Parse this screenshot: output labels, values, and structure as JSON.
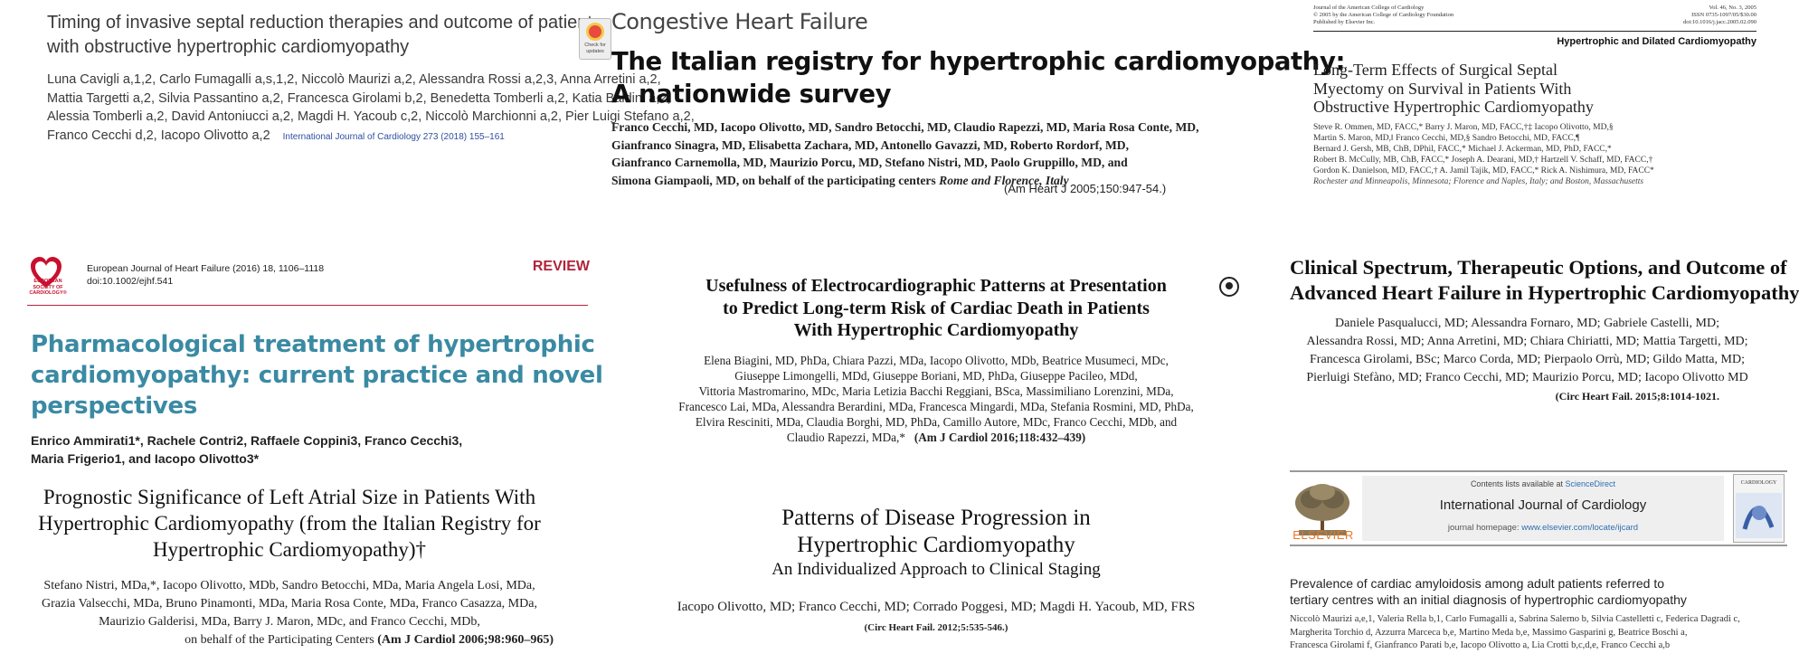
{
  "p1": {
    "title_lines": [
      "Timing of invasive septal reduction therapies and outcome of patients",
      "with obstructive hypertrophic cardiomyopathy"
    ],
    "author_lines": [
      "Luna Cavigli a,1,2, Carlo Fumagalli a,s,1,2, Niccolò Maurizi a,2, Alessandra Rossi a,2,3, Anna Arretini a,2,",
      "Mattia Targetti a,2, Silvia Passantino a,2, Francesca Girolami b,2, Benedetta Tomberli a,2, Katia Baldini a,2,",
      "Alessia Tomberli a,2, David Antoniucci a,2, Magdi H. Yacoub c,2, Niccolò Marchionni a,2, Pier Luigi Stefano a,2,",
      "Franco Cecchi d,2, Iacopo Olivotto a,2"
    ],
    "journal": "International Journal of Cardiology 273 (2018) 155–161",
    "badge": "Check for updates"
  },
  "p2": {
    "section": "Congestive Heart Failure",
    "title_lines": [
      "The Italian registry for hypertrophic cardiomyopathy:",
      "A nationwide survey"
    ],
    "author_lines": [
      "Franco Cecchi, MD, Iacopo Olivotto, MD, Sandro Betocchi, MD, Claudio Rapezzi, MD, Maria Rosa Conte, MD,",
      "Gianfranco Sinagra, MD, Elisabetta Zachara, MD, Antonello Gavazzi, MD, Roberto Rordorf, MD,",
      "Gianfranco Carnemolla, MD, Maurizio Porcu, MD, Stefano Nistri, MD, Paolo Gruppillo, MD, and",
      "Simona Giampaoli, MD, on behalf of the participating centers"
    ],
    "location": "Rome and Florence, Italy",
    "citation": "(Am Heart J 2005;150:947-54.)"
  },
  "p3": {
    "header_left": [
      "Journal of the American College of Cardiology",
      "© 2005 by the American College of Cardiology Foundation",
      "Published by Elsevier Inc."
    ],
    "header_right": [
      "Vol. 46, No. 3, 2005",
      "ISSN 0735-1097/05/$30.00",
      "doi:10.1016/j.jacc.2005.02.090"
    ],
    "section": "Hypertrophic and Dilated Cardiomyopathy",
    "title_lines": [
      "Long-Term Effects of Surgical Septal",
      "Myectomy on Survival in Patients With",
      "Obstructive Hypertrophic Cardiomyopathy"
    ],
    "author_lines": [
      "Steve R. Ommen, MD, FACC,* Barry J. Maron, MD, FACC,†‡ Iacopo Olivotto, MD,§",
      "Martin S. Maron, MD,‖ Franco Cecchi, MD,§ Sandro Betocchi, MD, FACC,¶",
      "Bernard J. Gersh, MB, ChB, DPhil, FACC,* Michael J. Ackerman, MD, PhD, FACC,*",
      "Robert B. McCully, MB, ChB, FACC,* Joseph A. Dearani, MD,† Hartzell V. Schaff, MD, FACC,†",
      "Gordon K. Danielson, MD, FACC,† A. Jamil Tajik, MD, FACC,* Rick A. Nishimura, MD, FACC*"
    ],
    "location": "Rochester and Minneapolis, Minnesota; Florence and Naples, Italy; and Boston, Massachusetts"
  },
  "p4": {
    "logo_text": [
      "EUROPEAN",
      "SOCIETY OF",
      "CARDIOLOGY®"
    ],
    "journal_lines": [
      "European Journal of Heart Failure (2016) 18, 1106–1118",
      "doi:10.1002/ejhf.541"
    ],
    "label": "REVIEW",
    "title_lines": [
      "Pharmacological treatment of hypertrophic",
      "cardiomyopathy: current practice and novel",
      "perspectives"
    ],
    "author_lines": [
      "Enrico Ammirati1*, Rachele Contri2, Raffaele Coppini3, Franco Cecchi3,",
      "Maria Frigerio1, and Iacopo Olivotto3*"
    ]
  },
  "p5": {
    "title_lines": [
      "Prognostic Significance of Left Atrial Size in Patients With",
      "Hypertrophic Cardiomyopathy (from the Italian Registry for",
      "Hypertrophic Cardiomyopathy)†"
    ],
    "author_lines": [
      "Stefano Nistri, MDa,*, Iacopo Olivotto, MDb, Sandro Betocchi, MDa, Maria Angela Losi, MDa,",
      "Grazia Valsecchi, MDa, Bruno Pinamonti, MDa, Maria Rosa Conte, MDa, Franco Casazza, MDa,",
      "Maurizio Galderisi, MDa, Barry J. Maron, MDc, and Franco Cecchi, MDb,"
    ],
    "last_line": "on behalf of the Participating Centers",
    "citation": "(Am J Cardiol 2006;98:960–965)"
  },
  "p6": {
    "title_lines": [
      "Usefulness of Electrocardiographic Patterns at Presentation",
      "to Predict Long-term Risk of Cardiac Death in Patients",
      "With Hypertrophic Cardiomyopathy"
    ],
    "author_lines": [
      "Elena Biagini, MD, PhDa, Chiara Pazzi, MDa, Iacopo Olivotto, MDb, Beatrice Musumeci, MDc,",
      "Giuseppe Limongelli, MDd, Giuseppe Boriani, MD, PhDa, Giuseppe Pacileo, MDd,",
      "Vittoria Mastromarino, MDc, Maria Letizia Bacchi Reggiani, BSca, Massimiliano Lorenzini, MDa,",
      "Francesco Lai, MDa, Alessandra Berardini, MDa, Francesca Mingardi, MDa, Stefania Rosmini, MD, PhDa,",
      "Elvira Resciniti, MDa, Claudia Borghi, MD, PhDa, Camillo Autore, MDc, Franco Cecchi, MDb, and"
    ],
    "last_line": "Claudio Rapezzi, MDa,*",
    "citation": "(Am J Cardiol 2016;118:432–439)"
  },
  "p7": {
    "title_lines": [
      "Patterns of Disease Progression in",
      "Hypertrophic Cardiomyopathy"
    ],
    "subtitle": "An Individualized Approach to Clinical Staging",
    "authors": "Iacopo Olivotto, MD; Franco Cecchi, MD; Corrado Poggesi, MD; Magdi H. Yacoub, MD, FRS",
    "citation": "(Circ Heart Fail. 2012;5:535-546.)"
  },
  "p8": {
    "title_lines": [
      "Clinical Spectrum, Therapeutic Options, and Outcome of",
      "Advanced Heart Failure in Hypertrophic Cardiomyopathy"
    ],
    "author_lines": [
      "Daniele Pasqualucci, MD; Alessandra Fornaro, MD; Gabriele Castelli, MD;",
      "Alessandra Rossi, MD; Anna Arretini, MD; Chiara Chiriatti, MD; Mattia Targetti, MD;",
      "Francesca Girolami, BSc; Marco Corda, MD; Pierpaolo Orrù, MD; Gildo Matta, MD;",
      "Pierluigi Stefàno, MD; Franco Cecchi, MD; Maurizio Porcu, MD; Iacopo Olivotto MD"
    ],
    "citation": "(Circ Heart Fail. 2015;8:1014-1021."
  },
  "p9": {
    "available": "Contents lists available at",
    "available_link": "ScienceDirect",
    "journal": "International Journal of Cardiology",
    "homepage": "journal homepage:",
    "homepage_link": "www.elsevier.com/locate/ijcard",
    "publisher": "ELSEVIER",
    "cover_title": "CARDIOLOGY",
    "title_lines": [
      "Prevalence of cardiac amyloidosis among adult patients referred to",
      "tertiary centres with an initial diagnosis of hypertrophic cardiomyopathy"
    ],
    "author_lines": [
      "Niccolò Maurizi a,e,1, Valeria Rella b,1, Carlo Fumagalli a, Sabrina Salerno b, Silvia Castelletti c, Federica Dagradi c,",
      "Margherita Torchio d, Azzurra Marceca b,e, Martino Meda b,e, Massimo Gasparini g, Beatrice Boschi a,",
      "Francesca Girolami f, Gianfranco Parati b,e, Iacopo Olivotto a, Lia Crotti b,c,d,e, Franco Cecchi a,b"
    ]
  }
}
